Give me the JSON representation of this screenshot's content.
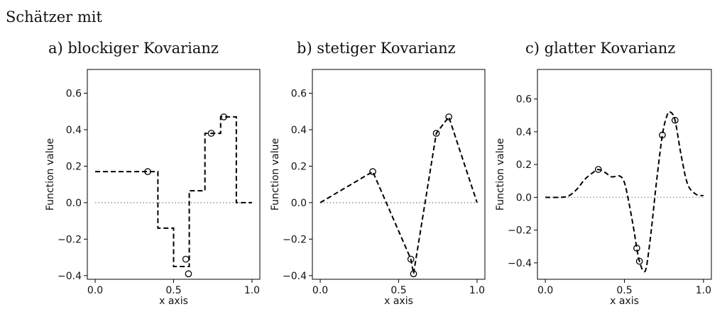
{
  "heading": "Schätzer mit",
  "chart_data": [
    {
      "type": "line",
      "title": "a) blockiger Kovarianz",
      "xlabel": "x axis",
      "ylabel": "Function value",
      "xlim": [
        -0.05,
        1.05
      ],
      "ylim": [
        -0.42,
        0.73
      ],
      "xticks": [
        "0.0",
        "0.5",
        "1.0"
      ],
      "xtick_values": [
        0.0,
        0.5,
        1.0
      ],
      "yticks": [
        "−0.4",
        "−0.2",
        "0.0",
        "0.2",
        "0.4",
        "0.6"
      ],
      "ytick_values": [
        -0.4,
        -0.2,
        0.0,
        0.2,
        0.4,
        0.6
      ],
      "grid": false,
      "zero_line": true,
      "estimate": {
        "style": "dashed",
        "color": "#000000",
        "step": true,
        "x": [
          0.0,
          0.4,
          0.4,
          0.5,
          0.5,
          0.6,
          0.6,
          0.7,
          0.7,
          0.8,
          0.8,
          0.9,
          0.9,
          1.0
        ],
        "y": [
          0.17,
          0.17,
          -0.14,
          -0.14,
          -0.35,
          -0.35,
          0.065,
          0.065,
          0.38,
          0.38,
          0.47,
          0.47,
          0.0,
          0.0
        ]
      },
      "observations": {
        "marker": "open-circle",
        "x": [
          0.335,
          0.578,
          0.595,
          0.74,
          0.82
        ],
        "y": [
          0.17,
          -0.31,
          -0.39,
          0.38,
          0.47
        ]
      }
    },
    {
      "type": "line",
      "title": "b) stetiger Kovarianz",
      "xlabel": "x axis",
      "ylabel": "Function value",
      "xlim": [
        -0.05,
        1.05
      ],
      "ylim": [
        -0.42,
        0.73
      ],
      "xticks": [
        "0.0",
        "0.5",
        "1.0"
      ],
      "xtick_values": [
        0.0,
        0.5,
        1.0
      ],
      "yticks": [
        "−0.4",
        "−0.2",
        "0.0",
        "0.2",
        "0.4",
        "0.6"
      ],
      "ytick_values": [
        -0.4,
        -0.2,
        0.0,
        0.2,
        0.4,
        0.6
      ],
      "grid": false,
      "zero_line": true,
      "estimate": {
        "style": "dashed",
        "color": "#000000",
        "step": false,
        "x": [
          0.0,
          0.335,
          0.578,
          0.595,
          0.74,
          0.82,
          1.0
        ],
        "y": [
          0.0,
          0.17,
          -0.31,
          -0.39,
          0.38,
          0.47,
          0.0
        ]
      },
      "observations": {
        "marker": "open-circle",
        "x": [
          0.335,
          0.578,
          0.595,
          0.74,
          0.82
        ],
        "y": [
          0.17,
          -0.31,
          -0.39,
          0.38,
          0.47
        ]
      }
    },
    {
      "type": "line",
      "title": "c) glatter Kovarianz",
      "xlabel": "x axis",
      "ylabel": "Function value",
      "xlim": [
        -0.05,
        1.05
      ],
      "ylim": [
        -0.5,
        0.78
      ],
      "xticks": [
        "0.0",
        "0.5",
        "1.0"
      ],
      "xtick_values": [
        0.0,
        0.5,
        1.0
      ],
      "yticks": [
        "−0.4",
        "−0.2",
        "0.0",
        "0.2",
        "0.4",
        "0.6"
      ],
      "ytick_values": [
        -0.4,
        -0.2,
        0.0,
        0.2,
        0.4,
        0.6
      ],
      "grid": false,
      "zero_line": true,
      "estimate": {
        "style": "dashed",
        "color": "#000000",
        "step": false,
        "smooth": true,
        "x": [
          0.0,
          0.1,
          0.15,
          0.2,
          0.25,
          0.3,
          0.335,
          0.38,
          0.42,
          0.47,
          0.5,
          0.53,
          0.56,
          0.578,
          0.595,
          0.62,
          0.64,
          0.67,
          0.7,
          0.74,
          0.77,
          0.79,
          0.82,
          0.86,
          0.9,
          0.95,
          1.0
        ],
        "y": [
          0.0,
          0.0,
          0.01,
          0.05,
          0.11,
          0.15,
          0.17,
          0.15,
          0.125,
          0.13,
          0.09,
          -0.04,
          -0.2,
          -0.31,
          -0.39,
          -0.45,
          -0.42,
          -0.2,
          0.07,
          0.38,
          0.5,
          0.52,
          0.47,
          0.25,
          0.08,
          0.02,
          0.01
        ]
      },
      "observations": {
        "marker": "open-circle",
        "x": [
          0.335,
          0.578,
          0.595,
          0.74,
          0.82
        ],
        "y": [
          0.17,
          -0.31,
          -0.39,
          0.38,
          0.47
        ]
      }
    }
  ]
}
